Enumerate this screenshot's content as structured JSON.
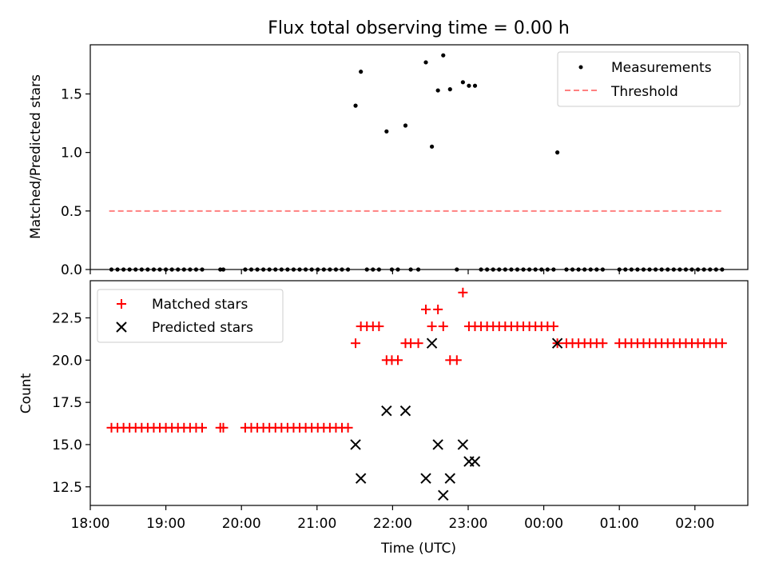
{
  "title": "Flux total observing time = 0.00 h",
  "chart_data": [
    {
      "type": "scatter",
      "ylabel": "Matched/Predicted stars",
      "ylim": [
        0,
        1.92
      ],
      "yticks": [
        "0.0",
        "0.5",
        "1.0",
        "1.5"
      ],
      "ytick_values": [
        0,
        0.5,
        1.0,
        1.5
      ],
      "legend_position": "top-right",
      "series": [
        {
          "name": "Measurements",
          "marker": "dot",
          "color": "#000000",
          "points": [
            [
              18.28,
              0
            ],
            [
              18.36,
              0
            ],
            [
              18.44,
              0
            ],
            [
              18.52,
              0
            ],
            [
              18.6,
              0
            ],
            [
              18.68,
              0
            ],
            [
              18.76,
              0
            ],
            [
              18.84,
              0
            ],
            [
              18.92,
              0
            ],
            [
              19.0,
              0
            ],
            [
              19.08,
              0
            ],
            [
              19.16,
              0
            ],
            [
              19.24,
              0
            ],
            [
              19.32,
              0
            ],
            [
              19.4,
              0
            ],
            [
              19.48,
              0
            ],
            [
              19.72,
              0
            ],
            [
              19.76,
              0
            ],
            [
              20.05,
              0
            ],
            [
              20.13,
              0
            ],
            [
              20.21,
              0
            ],
            [
              20.29,
              0
            ],
            [
              20.37,
              0
            ],
            [
              20.45,
              0
            ],
            [
              20.53,
              0
            ],
            [
              20.61,
              0
            ],
            [
              20.69,
              0
            ],
            [
              20.77,
              0
            ],
            [
              20.85,
              0
            ],
            [
              20.93,
              0
            ],
            [
              21.01,
              0
            ],
            [
              21.09,
              0
            ],
            [
              21.17,
              0
            ],
            [
              21.25,
              0
            ],
            [
              21.33,
              0
            ],
            [
              21.41,
              0
            ],
            [
              21.51,
              1.4
            ],
            [
              21.58,
              1.69
            ],
            [
              21.66,
              0
            ],
            [
              21.74,
              0
            ],
            [
              21.82,
              0
            ],
            [
              21.92,
              1.18
            ],
            [
              21.99,
              0
            ],
            [
              22.07,
              0
            ],
            [
              22.17,
              1.23
            ],
            [
              22.24,
              0
            ],
            [
              22.34,
              0
            ],
            [
              22.44,
              1.77
            ],
            [
              22.52,
              1.05
            ],
            [
              22.6,
              1.53
            ],
            [
              22.67,
              1.83
            ],
            [
              22.76,
              1.54
            ],
            [
              22.85,
              0
            ],
            [
              22.93,
              1.6
            ],
            [
              23.01,
              1.57
            ],
            [
              23.09,
              1.57
            ],
            [
              23.17,
              0
            ],
            [
              23.25,
              0
            ],
            [
              23.33,
              0
            ],
            [
              23.41,
              0
            ],
            [
              23.49,
              0
            ],
            [
              23.57,
              0
            ],
            [
              23.65,
              0
            ],
            [
              23.73,
              0
            ],
            [
              23.81,
              0
            ],
            [
              23.89,
              0
            ],
            [
              23.97,
              0
            ],
            [
              24.05,
              0
            ],
            [
              24.13,
              0
            ],
            [
              24.18,
              1.0
            ],
            [
              24.3,
              0
            ],
            [
              24.38,
              0
            ],
            [
              24.46,
              0
            ],
            [
              24.54,
              0
            ],
            [
              24.62,
              0
            ],
            [
              24.7,
              0
            ],
            [
              24.78,
              0
            ],
            [
              25.0,
              0
            ],
            [
              25.08,
              0
            ],
            [
              25.16,
              0
            ],
            [
              25.24,
              0
            ],
            [
              25.32,
              0
            ],
            [
              25.4,
              0
            ],
            [
              25.48,
              0
            ],
            [
              25.56,
              0
            ],
            [
              25.64,
              0
            ],
            [
              25.72,
              0
            ],
            [
              25.8,
              0
            ],
            [
              25.88,
              0
            ],
            [
              25.96,
              0
            ],
            [
              26.04,
              0
            ],
            [
              26.12,
              0
            ],
            [
              26.2,
              0
            ],
            [
              26.28,
              0
            ],
            [
              26.36,
              0
            ]
          ]
        },
        {
          "name": "Threshold",
          "marker": "dashed-line",
          "color": "#ff8080",
          "points": [
            [
              18.25,
              0.5
            ],
            [
              26.35,
              0.5
            ]
          ]
        }
      ]
    },
    {
      "type": "scatter",
      "ylabel": "Count",
      "xlabel": "Time (UTC)",
      "ylim": [
        11.4,
        24.7
      ],
      "yticks": [
        "12.5",
        "15.0",
        "17.5",
        "20.0",
        "22.5"
      ],
      "ytick_values": [
        12.5,
        15.0,
        17.5,
        20.0,
        22.5
      ],
      "xlim": [
        18.0,
        26.7
      ],
      "xticks": [
        "18:00",
        "19:00",
        "20:00",
        "21:00",
        "22:00",
        "23:00",
        "00:00",
        "01:00",
        "02:00"
      ],
      "xtick_values": [
        18,
        19,
        20,
        21,
        22,
        23,
        24,
        25,
        26
      ],
      "legend_position": "top-left",
      "series": [
        {
          "name": "Matched stars",
          "marker": "plus",
          "color": "#ff0000",
          "points": [
            [
              18.28,
              16
            ],
            [
              18.36,
              16
            ],
            [
              18.44,
              16
            ],
            [
              18.52,
              16
            ],
            [
              18.6,
              16
            ],
            [
              18.68,
              16
            ],
            [
              18.76,
              16
            ],
            [
              18.84,
              16
            ],
            [
              18.92,
              16
            ],
            [
              19.0,
              16
            ],
            [
              19.08,
              16
            ],
            [
              19.16,
              16
            ],
            [
              19.24,
              16
            ],
            [
              19.32,
              16
            ],
            [
              19.4,
              16
            ],
            [
              19.48,
              16
            ],
            [
              19.72,
              16
            ],
            [
              19.76,
              16
            ],
            [
              20.05,
              16
            ],
            [
              20.13,
              16
            ],
            [
              20.21,
              16
            ],
            [
              20.29,
              16
            ],
            [
              20.37,
              16
            ],
            [
              20.45,
              16
            ],
            [
              20.53,
              16
            ],
            [
              20.61,
              16
            ],
            [
              20.69,
              16
            ],
            [
              20.77,
              16
            ],
            [
              20.85,
              16
            ],
            [
              20.93,
              16
            ],
            [
              21.01,
              16
            ],
            [
              21.09,
              16
            ],
            [
              21.17,
              16
            ],
            [
              21.25,
              16
            ],
            [
              21.33,
              16
            ],
            [
              21.41,
              16
            ],
            [
              21.51,
              21
            ],
            [
              21.58,
              22
            ],
            [
              21.66,
              22
            ],
            [
              21.74,
              22
            ],
            [
              21.82,
              22
            ],
            [
              21.92,
              20
            ],
            [
              21.99,
              20
            ],
            [
              22.07,
              20
            ],
            [
              22.17,
              21
            ],
            [
              22.24,
              21
            ],
            [
              22.34,
              21
            ],
            [
              22.44,
              23
            ],
            [
              22.52,
              22
            ],
            [
              22.6,
              23
            ],
            [
              22.67,
              22
            ],
            [
              22.76,
              20
            ],
            [
              22.85,
              20
            ],
            [
              22.93,
              24
            ],
            [
              23.01,
              22
            ],
            [
              23.09,
              22
            ],
            [
              23.17,
              22
            ],
            [
              23.25,
              22
            ],
            [
              23.33,
              22
            ],
            [
              23.41,
              22
            ],
            [
              23.49,
              22
            ],
            [
              23.57,
              22
            ],
            [
              23.65,
              22
            ],
            [
              23.73,
              22
            ],
            [
              23.81,
              22
            ],
            [
              23.89,
              22
            ],
            [
              23.97,
              22
            ],
            [
              24.05,
              22
            ],
            [
              24.13,
              22
            ],
            [
              24.18,
              21
            ],
            [
              24.3,
              21
            ],
            [
              24.38,
              21
            ],
            [
              24.46,
              21
            ],
            [
              24.54,
              21
            ],
            [
              24.62,
              21
            ],
            [
              24.7,
              21
            ],
            [
              24.78,
              21
            ],
            [
              25.0,
              21
            ],
            [
              25.08,
              21
            ],
            [
              25.16,
              21
            ],
            [
              25.24,
              21
            ],
            [
              25.32,
              21
            ],
            [
              25.4,
              21
            ],
            [
              25.48,
              21
            ],
            [
              25.56,
              21
            ],
            [
              25.64,
              21
            ],
            [
              25.72,
              21
            ],
            [
              25.8,
              21
            ],
            [
              25.88,
              21
            ],
            [
              25.96,
              21
            ],
            [
              26.04,
              21
            ],
            [
              26.12,
              21
            ],
            [
              26.2,
              21
            ],
            [
              26.28,
              21
            ],
            [
              26.36,
              21
            ]
          ]
        },
        {
          "name": "Predicted stars",
          "marker": "x",
          "color": "#000000",
          "points": [
            [
              21.51,
              15
            ],
            [
              21.58,
              13
            ],
            [
              21.92,
              17
            ],
            [
              22.17,
              17
            ],
            [
              22.44,
              13
            ],
            [
              22.52,
              21
            ],
            [
              22.6,
              15
            ],
            [
              22.67,
              12
            ],
            [
              22.76,
              13
            ],
            [
              22.93,
              15
            ],
            [
              23.01,
              14
            ],
            [
              23.09,
              14
            ],
            [
              24.18,
              21
            ]
          ]
        }
      ]
    }
  ]
}
